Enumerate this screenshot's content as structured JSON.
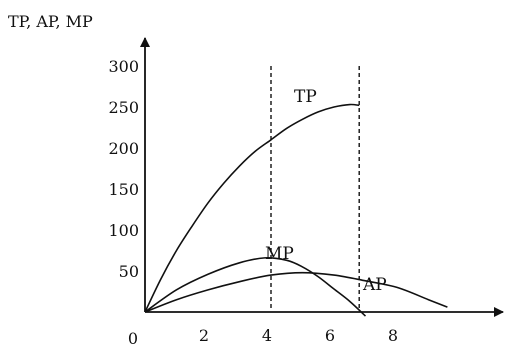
{
  "chart_data": {
    "type": "line",
    "ylabel": "TP, AP, MP",
    "xlabel": "",
    "xlim": [
      0,
      10.5
    ],
    "ylim": [
      0,
      330
    ],
    "xticks": [
      0,
      2,
      4,
      6,
      8
    ],
    "yticks": [
      50,
      100,
      150,
      200,
      250,
      300
    ],
    "grid": false,
    "vertical_guides": [
      4,
      6.8
    ],
    "series": [
      {
        "name": "TP",
        "x": [
          0,
          0.5,
          1,
          1.5,
          2,
          2.5,
          3,
          3.5,
          4,
          4.5,
          5,
          5.5,
          6,
          6.5,
          6.8
        ],
        "y": [
          0,
          40,
          75,
          105,
          133,
          157,
          178,
          196,
          210,
          224,
          235,
          244,
          250,
          253,
          252
        ]
      },
      {
        "name": "MP",
        "x": [
          0,
          1,
          2,
          3,
          3.8,
          4.5,
          5,
          5.5,
          6,
          6.5,
          7
        ],
        "y": [
          0,
          27,
          46,
          60,
          66,
          63,
          55,
          43,
          28,
          13,
          -5
        ]
      },
      {
        "name": "AP",
        "x": [
          0,
          1,
          2,
          3,
          4,
          5,
          6,
          7,
          8,
          9,
          9.6
        ],
        "y": [
          0,
          15,
          27,
          37,
          45,
          48,
          45,
          38,
          30,
          15,
          6
        ]
      }
    ]
  }
}
